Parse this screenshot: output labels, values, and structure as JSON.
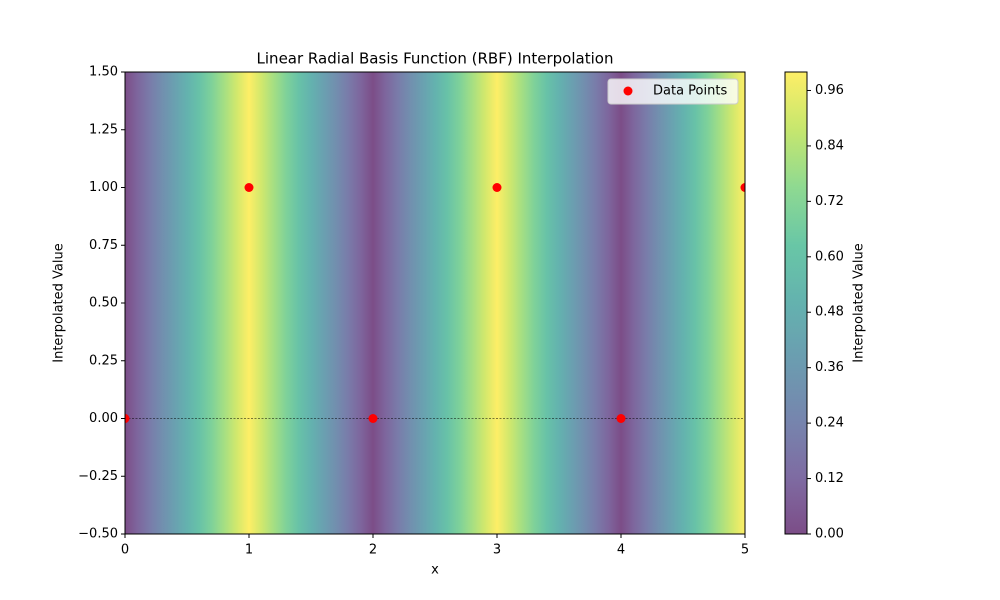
{
  "chart_data": {
    "type": "scatter",
    "title": "Linear Radial Basis Function (RBF) Interpolation",
    "x_label": "x",
    "y_label": "Interpolated Value",
    "series": [
      {
        "name": "Data Points",
        "color": "#ff0000",
        "x": [
          0,
          1,
          2,
          3,
          4,
          5
        ],
        "values": [
          0,
          1,
          0,
          1,
          0,
          1
        ]
      }
    ],
    "xlim": [
      0,
      5
    ],
    "xticks": [
      0,
      1,
      2,
      3,
      4,
      5
    ],
    "ylim": [
      -0.5,
      1.5
    ],
    "yticks": [
      {
        "value": -0.5,
        "label": "−0.50"
      },
      {
        "value": -0.25,
        "label": "−0.25"
      },
      {
        "value": 0,
        "label": "0.00"
      },
      {
        "value": 0.25,
        "label": "0.25"
      },
      {
        "value": 0.5,
        "label": "0.50"
      },
      {
        "value": 0.75,
        "label": "0.75"
      },
      {
        "value": 1,
        "label": "1.00"
      },
      {
        "value": 1.25,
        "label": "1.25"
      },
      {
        "value": 1.5,
        "label": "1.50"
      }
    ],
    "reference_line": 0,
    "legend": "upper right",
    "colormap": [
      "#440154",
      "#472d7b",
      "#3b528b",
      "#2c728e",
      "#21918c",
      "#28ae80",
      "#5ec962",
      "#addc30",
      "#fde725"
    ],
    "alpha": 0.7,
    "colorbar": {
      "label": "Interpolated Value",
      "lim": [
        0,
        1
      ],
      "ticks": [
        {
          "value": 0,
          "label": "0.00"
        },
        {
          "value": 0.12,
          "label": "0.12"
        },
        {
          "value": 0.24,
          "label": "0.24"
        },
        {
          "value": 0.36,
          "label": "0.36"
        },
        {
          "value": 0.48,
          "label": "0.48"
        },
        {
          "value": 0.6,
          "label": "0.60"
        },
        {
          "value": 0.72,
          "label": "0.72"
        },
        {
          "value": 0.84,
          "label": "0.84"
        },
        {
          "value": 0.96,
          "label": "0.96"
        }
      ]
    }
  }
}
